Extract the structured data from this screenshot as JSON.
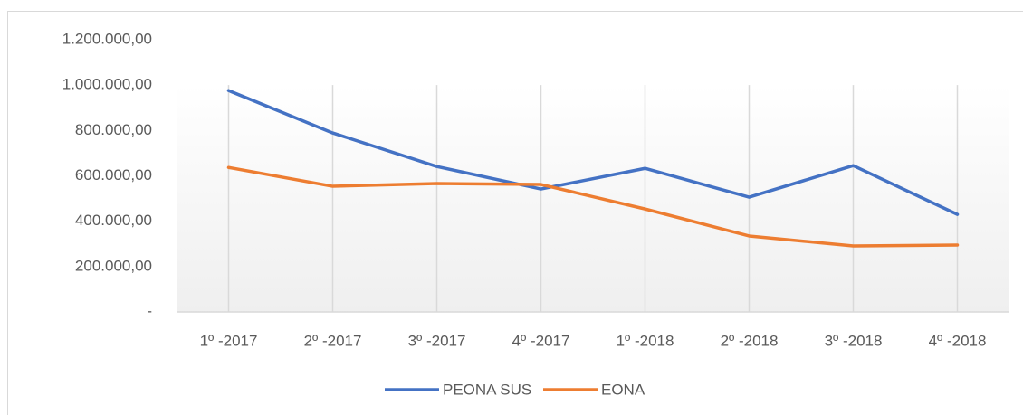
{
  "chart_data": {
    "type": "line",
    "categories": [
      "1º -2017",
      "2º -2017",
      "3º -2017",
      "4º -2017",
      "1º -2018",
      "2º -2018",
      "3º -2018",
      "4º -2018"
    ],
    "series": [
      {
        "name": "PEONA SUS",
        "color": "#4472c4",
        "values": [
          976000,
          789000,
          641000,
          542000,
          633000,
          506000,
          645000,
          430000
        ]
      },
      {
        "name": "EONA",
        "color": "#ed7d31",
        "values": [
          637000,
          554000,
          566000,
          562000,
          454000,
          335000,
          291000,
          295000
        ]
      }
    ],
    "ylim": [
      0,
      1200000
    ],
    "yticks": [
      {
        "value": 0,
        "label": "-"
      },
      {
        "value": 200000,
        "label": "200.000,00"
      },
      {
        "value": 400000,
        "label": "400.000,00"
      },
      {
        "value": 600000,
        "label": "600.000,00"
      },
      {
        "value": 800000,
        "label": "800.000,00"
      },
      {
        "value": 1000000,
        "label": "1.000.000,00"
      },
      {
        "value": 1200000,
        "label": "1.200.000,00"
      }
    ],
    "grid": true,
    "legend": "bottom"
  }
}
